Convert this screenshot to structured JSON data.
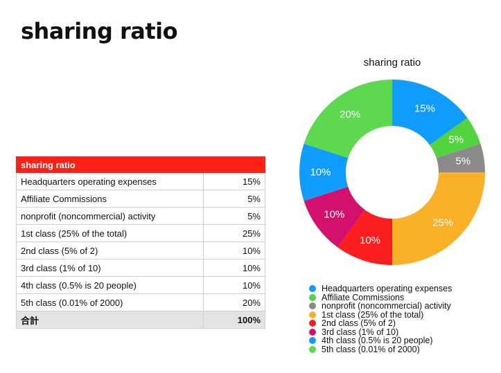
{
  "page": {
    "title": "sharing ratio"
  },
  "table": {
    "header": "sharing ratio",
    "rows": [
      {
        "label": "Headquarters operating expenses",
        "value": "15%"
      },
      {
        "label": "Affiliate Commissions",
        "value": "5%"
      },
      {
        "label": "nonprofit (noncommercial) activity",
        "value": "5%"
      },
      {
        "label": "1st class (25% of the total)",
        "value": "25%"
      },
      {
        "label": "2nd class (5% of 2)",
        "value": "10%"
      },
      {
        "label": "3rd class (1% of 10)",
        "value": "10%"
      },
      {
        "label": "4th class (0.5% is 20 people)",
        "value": "10%"
      },
      {
        "label": "5th class (0.01% of 2000)",
        "value": "20%"
      }
    ],
    "total": {
      "label": "合計",
      "value": "100%"
    },
    "header_color": "#fe2116"
  },
  "chart_data": {
    "type": "pie",
    "title": "sharing ratio",
    "donut": true,
    "legend_position": "bottom",
    "categories": [
      "Headquarters operating expenses",
      "Affiliate Commissions",
      "nonprofit (noncommercial) activity",
      "1st class (25% of the total)",
      "2nd class (5% of 2)",
      "3rd class (1% of 10)",
      "4th class (0.5% is 20 people)",
      "5th class (0.01% of 2000)"
    ],
    "values": [
      15,
      5,
      5,
      25,
      10,
      10,
      10,
      20
    ],
    "data_labels": [
      "15%",
      "5%",
      "5%",
      "25%",
      "10%",
      "10%",
      "10%",
      "20%"
    ],
    "colors": [
      "#0f9cfb",
      "#52d33f",
      "#8a8a8a",
      "#fbb029",
      "#fc1d1f",
      "#d3116c",
      "#0f9cfb",
      "#5dd84f"
    ]
  }
}
